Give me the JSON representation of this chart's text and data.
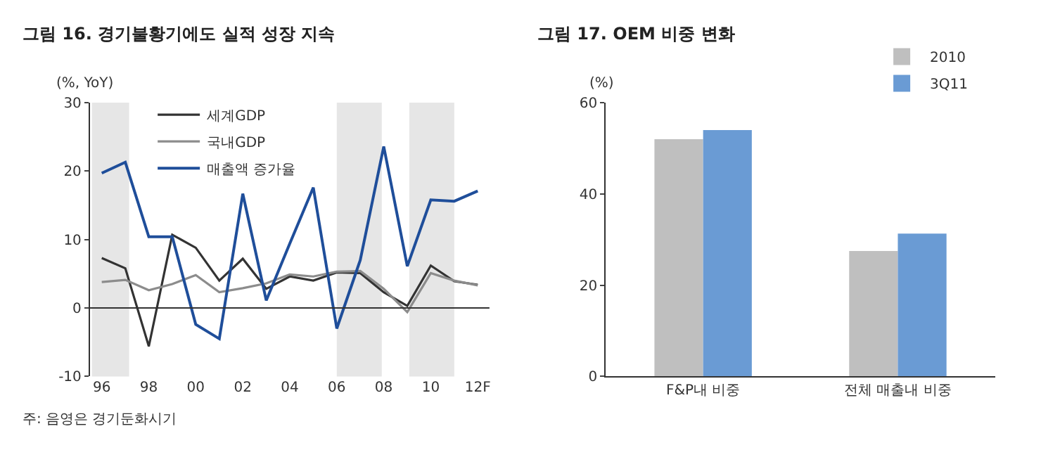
{
  "chart_data": [
    {
      "type": "line",
      "title": "그림 16. 경기불황기에도 실적 성장 지속",
      "ylabel": "(%, YoY)",
      "x": [
        "1996",
        "1997",
        "1998",
        "1999",
        "2000",
        "2001",
        "2002",
        "2003",
        "2004",
        "2005",
        "2006",
        "2007",
        "2008",
        "2009",
        "2010",
        "2011",
        "2012"
      ],
      "series": [
        {
          "name": "세계GDP",
          "color": "#333333",
          "values": [
            7.3,
            5.8,
            -5.6,
            10.7,
            8.8,
            4.0,
            7.2,
            2.8,
            4.6,
            4.0,
            5.2,
            5.1,
            2.3,
            0.3,
            6.2,
            3.9,
            3.4
          ]
        },
        {
          "name": "국내GDP",
          "color": "#8c8c8c",
          "values": [
            3.8,
            4.1,
            2.6,
            3.5,
            4.8,
            2.3,
            2.9,
            3.6,
            4.9,
            4.6,
            5.3,
            5.4,
            2.8,
            -0.6,
            5.1,
            4.0,
            3.3
          ]
        },
        {
          "name": "매출액 증가율",
          "color": "#1f4e9a",
          "values": [
            19.7,
            21.3,
            10.4,
            10.4,
            -2.4,
            -4.5,
            16.7,
            1.1,
            9.4,
            17.6,
            -3.0,
            7.0,
            23.6,
            6.1,
            15.8,
            15.6,
            17.1
          ]
        }
      ],
      "xlim": [
        "1995-07",
        "2012-07"
      ],
      "xticks": [
        {
          "value": "1996",
          "label": "96"
        },
        {
          "value": "1998",
          "label": "98"
        },
        {
          "value": "2000",
          "label": "00"
        },
        {
          "value": "2002",
          "label": "02"
        },
        {
          "value": "2004",
          "label": "04"
        },
        {
          "value": "2006",
          "label": "06"
        },
        {
          "value": "2008",
          "label": "08"
        },
        {
          "value": "2010",
          "label": "10"
        },
        {
          "value": "2012",
          "label": "12F"
        }
      ],
      "ylim": [
        -10,
        30
      ],
      "yticks": [
        -10,
        0,
        10,
        20,
        30
      ],
      "bands": [
        {
          "axis": "x",
          "from": "1995-08",
          "to": "1997-03",
          "color": "#e6e6e6"
        },
        {
          "axis": "x",
          "from": "2006-01",
          "to": "2007-12",
          "color": "#e6e6e6"
        },
        {
          "axis": "x",
          "from": "2009-02",
          "to": "2011-01",
          "color": "#e6e6e6"
        }
      ],
      "ref_lines": [
        {
          "axis": "y",
          "value": 0,
          "color": "#333333"
        }
      ],
      "annotations": [
        "주: 음영은 경기둔화시기"
      ],
      "legend": "top left",
      "grid": false,
      "marker": "none",
      "line_style": "solid"
    },
    {
      "type": "bar",
      "title": "그림 17. OEM 비중 변화",
      "ylabel": "(%)",
      "categories": [
        "F&P내 비중",
        "전체 매출내 비중"
      ],
      "series": [
        {
          "name": "2010",
          "color": "#bfbfbf",
          "values": [
            52,
            27.5
          ]
        },
        {
          "name": "3Q11",
          "color": "#6a9bd4",
          "values": [
            54,
            31.3
          ]
        }
      ],
      "ylim": [
        0,
        60
      ],
      "yticks": [
        0,
        20,
        40,
        60
      ],
      "legend": "top right",
      "grid": false
    }
  ]
}
